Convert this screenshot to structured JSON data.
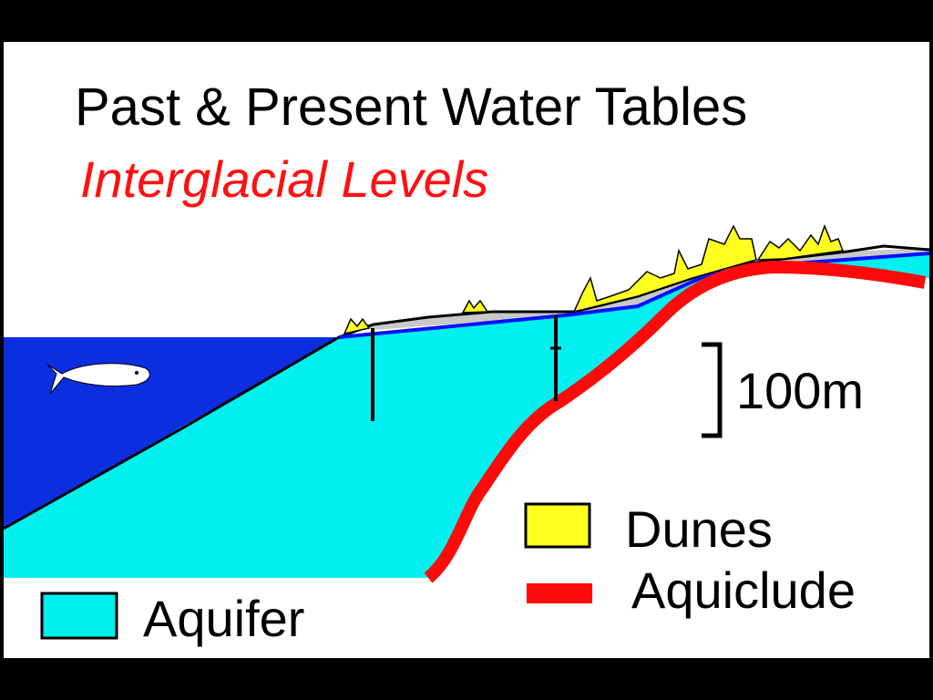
{
  "title": "Past & Present Water Tables",
  "subtitle": "Interglacial Levels",
  "scale_label": "100m",
  "legend": {
    "dunes": "Dunes",
    "aquiclude": "Aquiclude",
    "aquifer": "Aquifer"
  }
}
